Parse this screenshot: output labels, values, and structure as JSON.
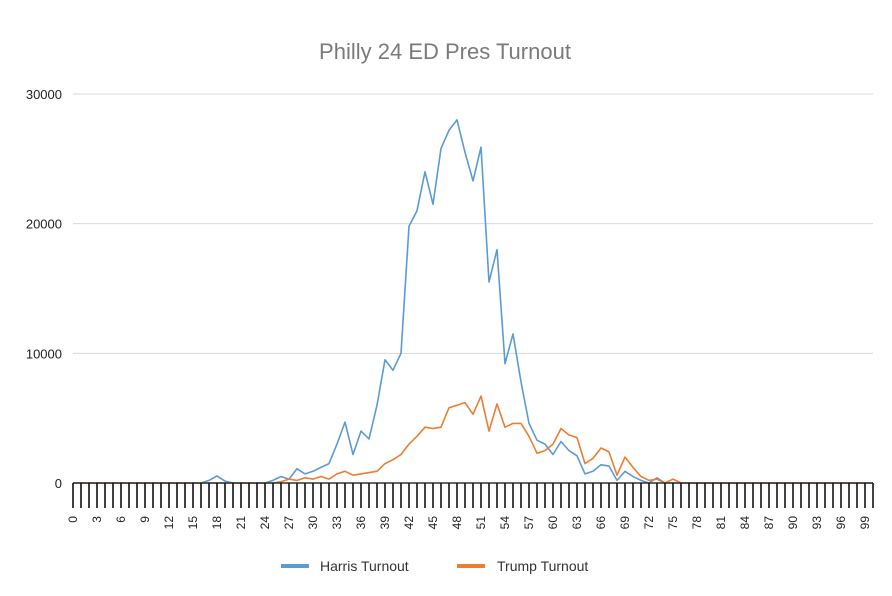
{
  "chart_data": {
    "type": "line",
    "title": "Philly 24 ED Pres Turnout",
    "xlabel": "",
    "ylabel": "",
    "x_range": [
      0,
      100
    ],
    "x_tick_labels": [
      "0",
      "3",
      "6",
      "9",
      "12",
      "15",
      "18",
      "21",
      "24",
      "27",
      "30",
      "33",
      "36",
      "39",
      "42",
      "45",
      "48",
      "51",
      "54",
      "57",
      "60",
      "63",
      "66",
      "69",
      "72",
      "75",
      "78",
      "81",
      "84",
      "87",
      "90",
      "93",
      "96",
      "99"
    ],
    "y_ticks": [
      0,
      10000,
      20000,
      30000
    ],
    "ylim": [
      0,
      30000
    ],
    "grid": "horizontal",
    "legend_position": "bottom",
    "series": [
      {
        "name": "Harris Turnout",
        "color": "#5b9bd5",
        "points": [
          [
            0,
            0
          ],
          [
            12,
            0
          ],
          [
            16,
            0
          ],
          [
            17,
            200
          ],
          [
            18,
            550
          ],
          [
            19,
            150
          ],
          [
            20,
            0
          ],
          [
            24,
            0
          ],
          [
            25,
            200
          ],
          [
            26,
            500
          ],
          [
            27,
            300
          ],
          [
            28,
            1100
          ],
          [
            29,
            700
          ],
          [
            30,
            900
          ],
          [
            31,
            1200
          ],
          [
            32,
            1500
          ],
          [
            33,
            3000
          ],
          [
            34,
            4700
          ],
          [
            35,
            2200
          ],
          [
            36,
            4000
          ],
          [
            37,
            3400
          ],
          [
            38,
            6000
          ],
          [
            39,
            9500
          ],
          [
            40,
            8700
          ],
          [
            41,
            10000
          ],
          [
            42,
            19800
          ],
          [
            43,
            21000
          ],
          [
            44,
            24000
          ],
          [
            45,
            21500
          ],
          [
            46,
            25800
          ],
          [
            47,
            27200
          ],
          [
            48,
            28000
          ],
          [
            49,
            25500
          ],
          [
            50,
            23300
          ],
          [
            51,
            25900
          ],
          [
            52,
            15500
          ],
          [
            53,
            18000
          ],
          [
            54,
            9200
          ],
          [
            55,
            11500
          ],
          [
            56,
            7800
          ],
          [
            57,
            4600
          ],
          [
            58,
            3300
          ],
          [
            59,
            3000
          ],
          [
            60,
            2200
          ],
          [
            61,
            3200
          ],
          [
            62,
            2500
          ],
          [
            63,
            2100
          ],
          [
            64,
            700
          ],
          [
            65,
            900
          ],
          [
            66,
            1400
          ],
          [
            67,
            1300
          ],
          [
            68,
            200
          ],
          [
            69,
            900
          ],
          [
            70,
            500
          ],
          [
            71,
            200
          ],
          [
            72,
            0
          ],
          [
            73,
            400
          ],
          [
            74,
            0
          ],
          [
            100,
            0
          ]
        ]
      },
      {
        "name": "Trump Turnout",
        "color": "#ed7d31",
        "points": [
          [
            0,
            0
          ],
          [
            25,
            0
          ],
          [
            26,
            100
          ],
          [
            27,
            300
          ],
          [
            28,
            200
          ],
          [
            29,
            400
          ],
          [
            30,
            300
          ],
          [
            31,
            500
          ],
          [
            32,
            300
          ],
          [
            33,
            700
          ],
          [
            34,
            900
          ],
          [
            35,
            600
          ],
          [
            36,
            700
          ],
          [
            37,
            800
          ],
          [
            38,
            900
          ],
          [
            39,
            1500
          ],
          [
            40,
            1800
          ],
          [
            41,
            2200
          ],
          [
            42,
            3000
          ],
          [
            43,
            3600
          ],
          [
            44,
            4300
          ],
          [
            45,
            4200
          ],
          [
            46,
            4300
          ],
          [
            47,
            5800
          ],
          [
            48,
            6000
          ],
          [
            49,
            6200
          ],
          [
            50,
            5300
          ],
          [
            51,
            6700
          ],
          [
            52,
            4000
          ],
          [
            53,
            6100
          ],
          [
            54,
            4300
          ],
          [
            55,
            4600
          ],
          [
            56,
            4600
          ],
          [
            57,
            3600
          ],
          [
            58,
            2300
          ],
          [
            59,
            2500
          ],
          [
            60,
            3000
          ],
          [
            61,
            4200
          ],
          [
            62,
            3700
          ],
          [
            63,
            3500
          ],
          [
            64,
            1500
          ],
          [
            65,
            1900
          ],
          [
            66,
            2700
          ],
          [
            67,
            2400
          ],
          [
            68,
            600
          ],
          [
            69,
            2000
          ],
          [
            70,
            1200
          ],
          [
            71,
            500
          ],
          [
            72,
            200
          ],
          [
            73,
            300
          ],
          [
            74,
            0
          ],
          [
            75,
            300
          ],
          [
            76,
            0
          ],
          [
            100,
            0
          ]
        ]
      }
    ]
  }
}
